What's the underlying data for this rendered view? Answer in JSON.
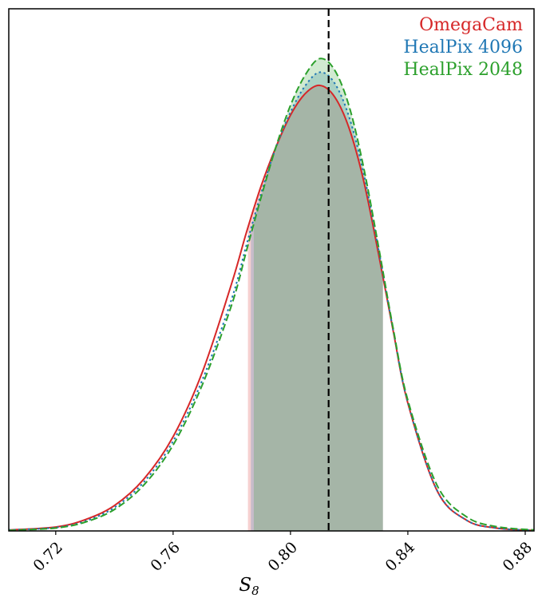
{
  "chart_data": {
    "type": "line",
    "title": "",
    "xlabel": "S",
    "xlabel_subscript": "8",
    "ylabel": "",
    "xlim": [
      0.704,
      0.883
    ],
    "ylim": [
      0,
      1.07
    ],
    "y_ticks_shown": false,
    "grid": false,
    "legend_position": "top-right",
    "x_ticks": [
      {
        "value": 0.72,
        "label": "0.72"
      },
      {
        "value": 0.76,
        "label": "0.76"
      },
      {
        "value": 0.8,
        "label": "0.80"
      },
      {
        "value": 0.84,
        "label": "0.84"
      },
      {
        "value": 0.88,
        "label": "0.88"
      }
    ],
    "reference_line": {
      "x": 0.813,
      "style": "dashed",
      "color": "#000000"
    },
    "series": [
      {
        "name": "OmegaCam",
        "color": "#d62728",
        "line_style": "solid",
        "fill_color": "#d62728",
        "shade_range": [
          0.7855,
          0.8315
        ],
        "x": [
          0.704,
          0.72,
          0.73,
          0.74,
          0.75,
          0.76,
          0.77,
          0.78,
          0.785,
          0.79,
          0.795,
          0.8,
          0.805,
          0.81,
          0.815,
          0.82,
          0.825,
          0.83,
          0.835,
          0.84,
          0.85,
          0.86,
          0.87,
          0.883
        ],
        "y": [
          0.002,
          0.008,
          0.023,
          0.052,
          0.106,
          0.193,
          0.326,
          0.508,
          0.612,
          0.707,
          0.786,
          0.852,
          0.896,
          0.913,
          0.89,
          0.825,
          0.716,
          0.568,
          0.41,
          0.262,
          0.082,
          0.022,
          0.006,
          0.001
        ]
      },
      {
        "name": "HealPix 4096",
        "color": "#1f77b4",
        "line_style": "dotted",
        "fill_color": "#1f77b4",
        "shade_range": [
          0.7865,
          0.8315
        ],
        "x": [
          0.704,
          0.72,
          0.73,
          0.74,
          0.75,
          0.76,
          0.77,
          0.78,
          0.785,
          0.79,
          0.795,
          0.8,
          0.805,
          0.81,
          0.815,
          0.82,
          0.825,
          0.83,
          0.835,
          0.84,
          0.85,
          0.86,
          0.87,
          0.883
        ],
        "y": [
          0.002,
          0.007,
          0.02,
          0.048,
          0.1,
          0.184,
          0.31,
          0.476,
          0.586,
          0.692,
          0.785,
          0.858,
          0.912,
          0.94,
          0.918,
          0.848,
          0.731,
          0.577,
          0.412,
          0.263,
          0.083,
          0.022,
          0.006,
          0.001
        ]
      },
      {
        "name": "HealPix 2048",
        "color": "#2ca02c",
        "line_style": "dashed",
        "fill_color": "#2ca02c",
        "shade_range": [
          0.7875,
          0.8315
        ],
        "x": [
          0.704,
          0.72,
          0.73,
          0.74,
          0.75,
          0.76,
          0.77,
          0.78,
          0.785,
          0.79,
          0.795,
          0.8,
          0.805,
          0.81,
          0.815,
          0.82,
          0.825,
          0.83,
          0.835,
          0.84,
          0.85,
          0.86,
          0.87,
          0.883
        ],
        "y": [
          0.001,
          0.006,
          0.018,
          0.044,
          0.094,
          0.176,
          0.3,
          0.464,
          0.574,
          0.684,
          0.786,
          0.872,
          0.934,
          0.968,
          0.945,
          0.87,
          0.743,
          0.583,
          0.415,
          0.268,
          0.093,
          0.029,
          0.009,
          0.002
        ]
      }
    ]
  }
}
